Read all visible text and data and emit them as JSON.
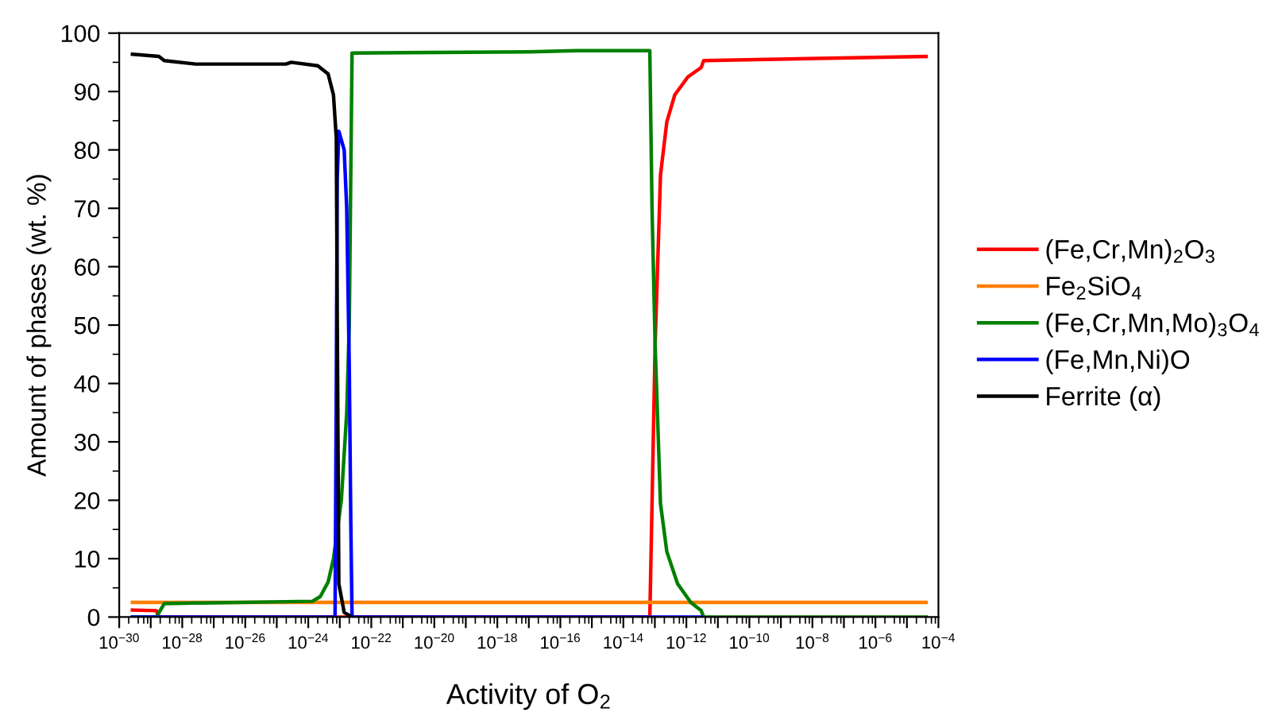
{
  "chart_data": {
    "type": "line",
    "xlabel": "Activity of O$_{2}$",
    "ylabel": "Amount of phases (wt. %)",
    "log": "x",
    "xlim": [
      1e-30,
      0.0001
    ],
    "ylim": [
      0,
      100
    ],
    "xticks": [
      {
        "value": 1e-30,
        "label": "10$^{−30}$"
      },
      {
        "value": 1e-29,
        "label": null
      },
      {
        "value": 1e-28,
        "label": "10$^{−28}$"
      },
      {
        "value": 1e-27,
        "label": null
      },
      {
        "value": 1e-26,
        "label": "10$^{−26}$"
      },
      {
        "value": 1e-25,
        "label": null
      },
      {
        "value": 1e-24,
        "label": "10$^{−24}$"
      },
      {
        "value": 1e-23,
        "label": null
      },
      {
        "value": 1e-22,
        "label": "10$^{−22}$"
      },
      {
        "value": 1e-21,
        "label": null
      },
      {
        "value": 1e-20,
        "label": "10$^{−20}$"
      },
      {
        "value": 1e-19,
        "label": null
      },
      {
        "value": 1e-18,
        "label": "10$^{−18}$"
      },
      {
        "value": 1e-17,
        "label": null
      },
      {
        "value": 1e-16,
        "label": "10$^{−16}$"
      },
      {
        "value": 1e-15,
        "label": null
      },
      {
        "value": 1e-14,
        "label": "10$^{−14}$"
      },
      {
        "value": 1e-13,
        "label": null
      },
      {
        "value": 1e-12,
        "label": "10$^{−12}$"
      },
      {
        "value": 1e-11,
        "label": null
      },
      {
        "value": 1e-10,
        "label": "10$^{−10}$"
      },
      {
        "value": 1e-09,
        "label": null
      },
      {
        "value": 1e-08,
        "label": "10$^{−8}$"
      },
      {
        "value": 1e-07,
        "label": null
      },
      {
        "value": 1e-06,
        "label": "10$^{−6}$"
      },
      {
        "value": 1e-05,
        "label": null
      },
      {
        "value": 0.0001,
        "label": "10$^{−4}$"
      }
    ],
    "yticks": [
      0,
      10,
      20,
      30,
      40,
      50,
      60,
      70,
      80,
      90,
      100
    ],
    "grid": false,
    "legend": "right",
    "marker": "none",
    "line_style": "solid",
    "series": [
      {
        "name": "(Fe,Cr,Mn)$_{2}$O$_{3}$",
        "color": "#ff0000",
        "x": [
          2.63e-30,
          1.51e-29,
          1.82e-29,
          6.92e-14,
          1.02e-13,
          1.51e-13,
          2.4e-13,
          4.27e-13,
          1.12e-12,
          2.95e-12,
          3.55e-12,
          4.07e-05
        ],
        "values": [
          1.2,
          1.1,
          0,
          0,
          46.6,
          75.7,
          84.8,
          89.4,
          92.5,
          94.1,
          95.3,
          96.0
        ]
      },
      {
        "name": "Fe$_{2}$SiO$_{4}$",
        "color": "#ff7f00",
        "x": [
          2.63e-30,
          4.07e-05
        ],
        "values": [
          2.5,
          2.5
        ]
      },
      {
        "name": "(Fe,Cr,Mn,Mo)$_{3}$O$_{4}$",
        "color": "#008000",
        "x": [
          2.63e-30,
          1.51e-29,
          2.69e-29,
          2.69e-28,
          1.35e-24,
          2.4e-24,
          4.27e-24,
          6.31e-24,
          1.12e-23,
          1.66e-23,
          2e-23,
          2.45e-23,
          1e-17,
          3.16e-16,
          6.92e-14,
          8.13e-14,
          1.02e-13,
          1.51e-13,
          2.4e-13,
          5.25e-13,
          1.38e-12,
          2.95e-12,
          3.55e-12,
          4.07e-05
        ],
        "values": [
          0,
          0,
          2.3,
          2.4,
          2.7,
          3.5,
          6,
          10,
          20,
          35,
          50,
          96.6,
          96.8,
          97.0,
          97.0,
          70,
          46.6,
          19.4,
          11.2,
          5.7,
          2.5,
          1.1,
          0,
          0
        ]
      },
      {
        "name": "(Fe,Mn,Ni)O",
        "color": "#0000ff",
        "x": [
          2.63e-30,
          7.08e-24,
          7.76e-24,
          8.32e-24,
          9.33e-24,
          1.38e-23,
          1.66e-23,
          2e-23,
          2.24e-23,
          2.45e-23,
          2.95e-12
        ],
        "values": [
          0,
          0,
          40,
          75,
          83.2,
          80,
          70,
          43,
          16,
          0,
          0
        ]
      },
      {
        "name": "Ferrite (α)",
        "color": "#000000",
        "x": [
          2.63e-30,
          1.82e-29,
          2.69e-29,
          2.69e-28,
          1.95e-25,
          2.88e-25,
          2e-24,
          4.27e-24,
          6.31e-24,
          7.76e-24,
          8.32e-24,
          9.33e-24,
          1.38e-23,
          2.45e-23
        ],
        "values": [
          96.4,
          96.0,
          95.3,
          94.7,
          94.7,
          95.0,
          94.4,
          93.0,
          89.4,
          82,
          51,
          5.7,
          0.8,
          0
        ]
      }
    ]
  }
}
